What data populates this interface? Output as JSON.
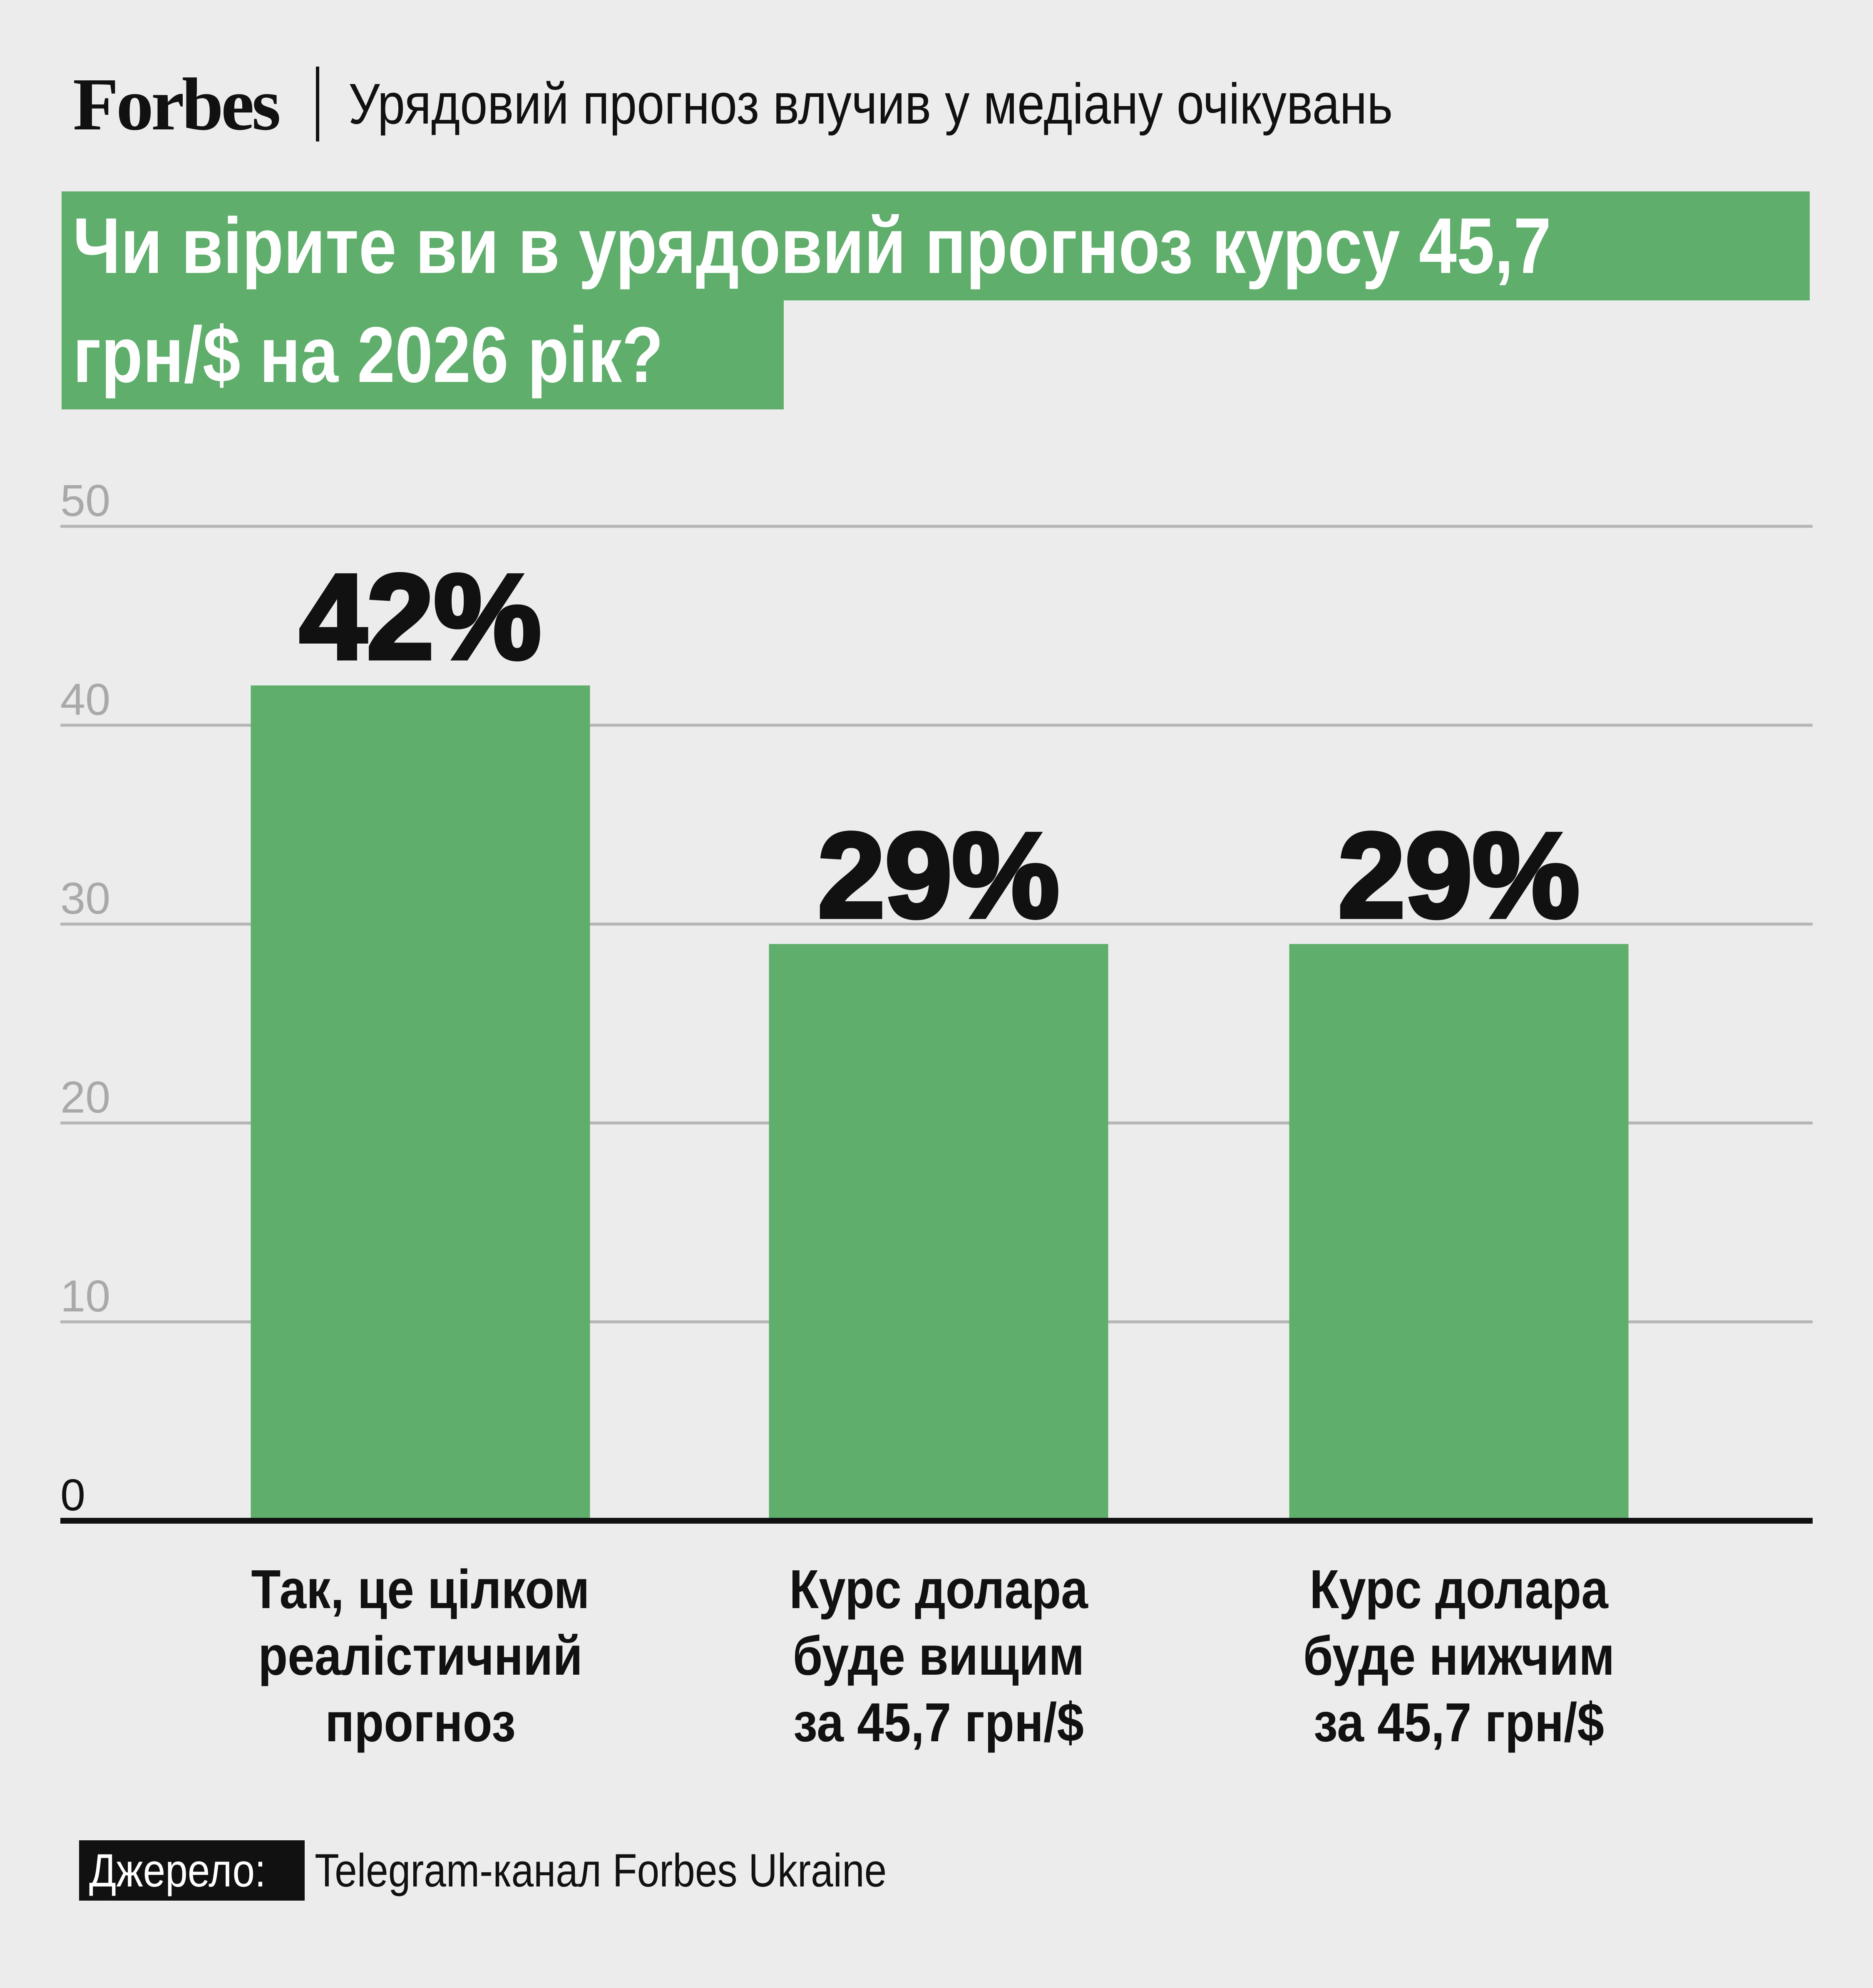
{
  "header": {
    "logo_text": "Forbes",
    "subtitle": "Урядовий прогноз влучив у медіану очікувань"
  },
  "title": {
    "line1": "Чи вірите ви в урядовий прогноз курсу 45,7",
    "line2": "грн/$ на 2026 рік?"
  },
  "colors": {
    "bar": "#5fae6c",
    "title_bg": "#5fae6c",
    "grid": "#b5b5b5",
    "background": "#ececec"
  },
  "chart_data": {
    "type": "bar",
    "title": "Чи вірите ви в урядовий прогноз курсу 45,7 грн/$ на 2026 рік?",
    "categories": [
      [
        "Так, це цілком",
        "реалістичний",
        "прогноз"
      ],
      [
        "Курс долара",
        "буде вищим",
        "за 45,7 грн/$"
      ],
      [
        "Курс долара",
        "буде нижчим",
        "за 45,7 грн/$"
      ]
    ],
    "values": [
      42,
      29,
      29
    ],
    "value_labels": [
      "42%",
      "29%",
      "29%"
    ],
    "yticks": [
      "0",
      "10",
      "20",
      "30",
      "40",
      "50"
    ],
    "ylim": [
      0,
      50
    ],
    "grid": true,
    "xlabel": "",
    "ylabel": ""
  },
  "source": {
    "label": "Джерело:",
    "text": "Telegram-канал Forbes Ukraine"
  }
}
